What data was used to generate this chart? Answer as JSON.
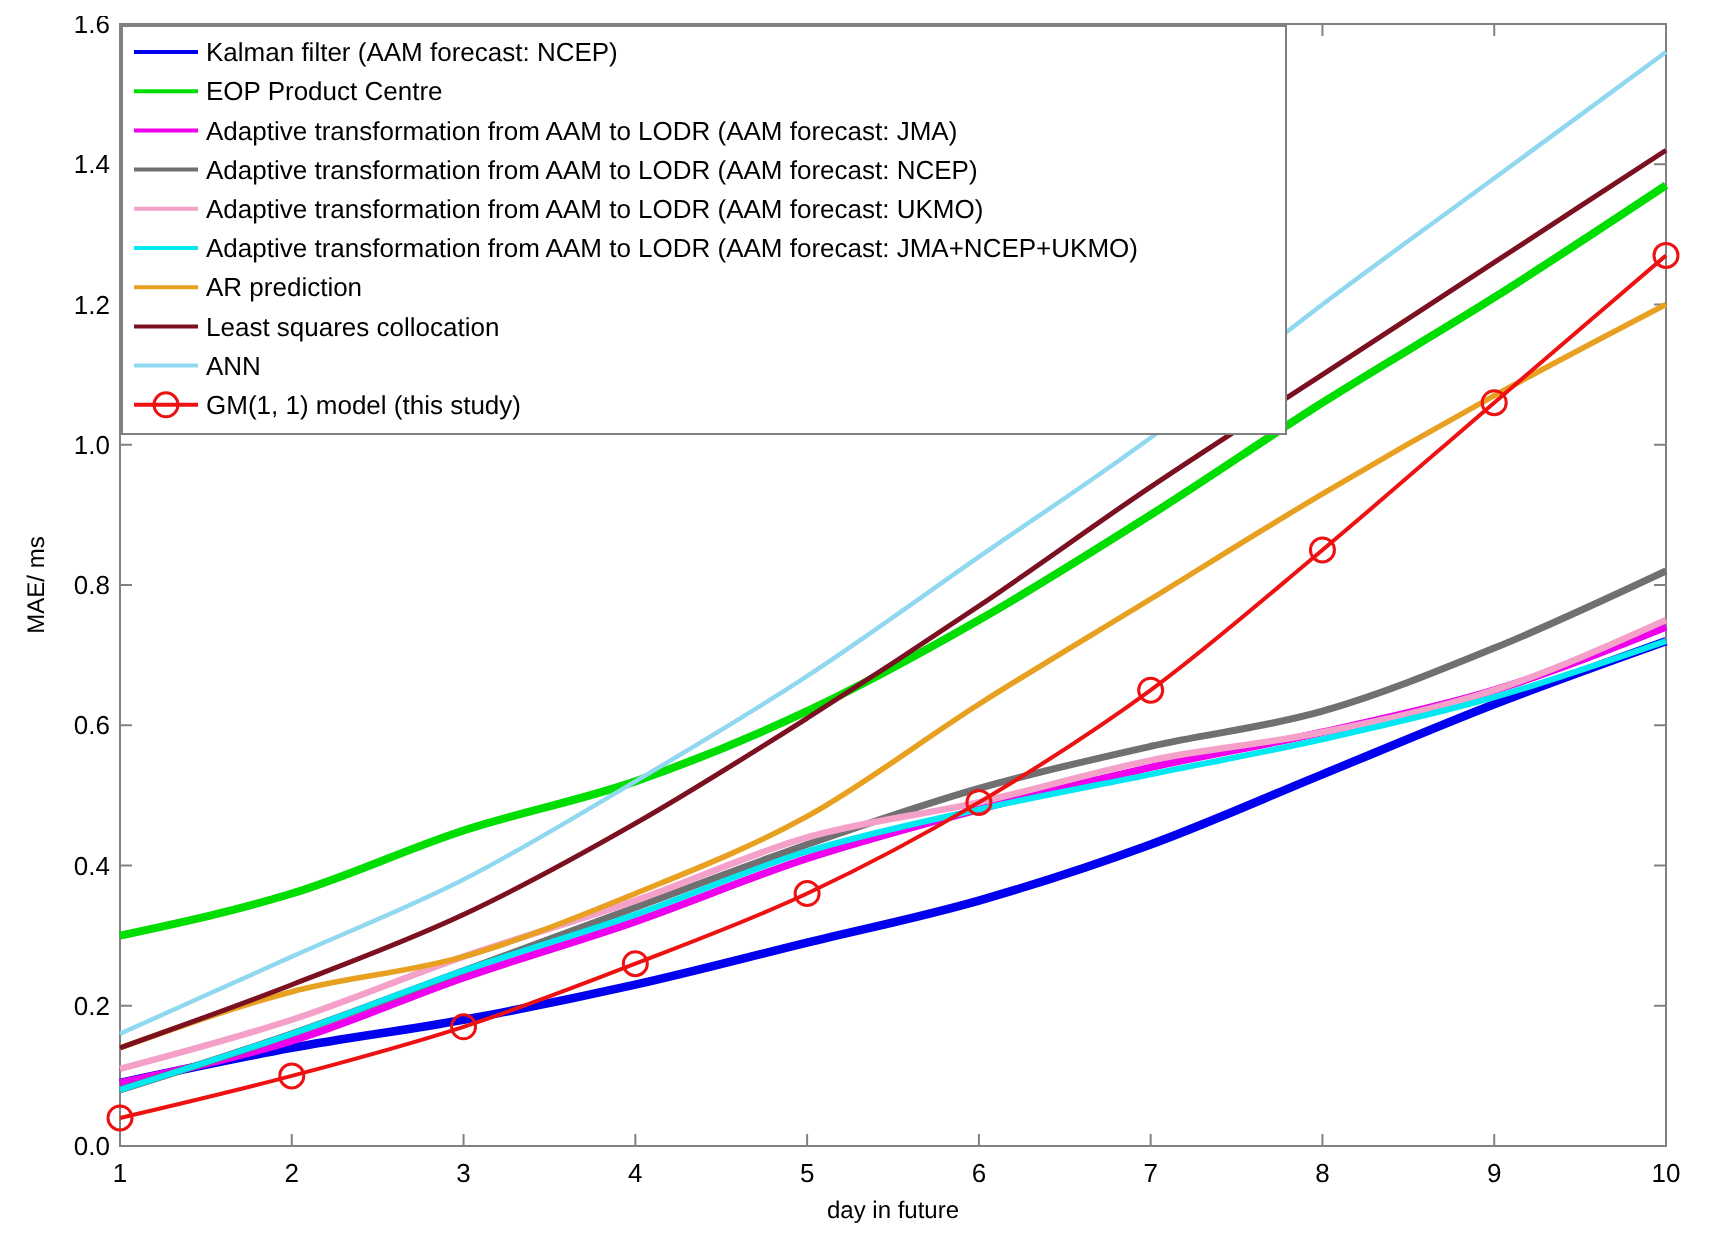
{
  "chart_data": {
    "type": "line",
    "xlabel": "day in future",
    "ylabel": "MAE/ ms",
    "x": [
      1,
      2,
      3,
      4,
      5,
      6,
      7,
      8,
      9,
      10
    ],
    "xlim": [
      1,
      10
    ],
    "xticks": [
      1,
      2,
      3,
      4,
      5,
      6,
      7,
      8,
      9,
      10
    ],
    "ylim": [
      0,
      1.6
    ],
    "yticks": [
      {
        "value": 0,
        "label": "0.0"
      },
      {
        "value": 0.2,
        "label": "0.2"
      },
      {
        "value": 0.4,
        "label": "0.4"
      },
      {
        "value": 0.6,
        "label": "0.6"
      },
      {
        "value": 0.8,
        "label": "0.8"
      },
      {
        "value": 1,
        "label": "1.0"
      },
      {
        "value": 1.2,
        "label": "1.2"
      },
      {
        "value": 1.4,
        "label": "1.4"
      },
      {
        "value": 1.6,
        "label": "1.6"
      }
    ],
    "grid": false,
    "legend": "top left",
    "series": [
      {
        "name": "Kalman filter (AAM forecast: NCEP)",
        "color": "#0000ee",
        "values": [
          0.09,
          0.14,
          0.18,
          0.23,
          0.29,
          0.35,
          0.43,
          0.53,
          0.63,
          0.72
        ]
      },
      {
        "name": "EOP Product Centre",
        "color": "#00dd00",
        "values": [
          0.3,
          0.36,
          0.45,
          0.52,
          0.62,
          0.75,
          0.9,
          1.06,
          1.21,
          1.37
        ]
      },
      {
        "name": "Adaptive transformation from AAM to LODR (AAM forecast: JMA)",
        "color": "#ee00ee",
        "values": [
          0.09,
          0.15,
          0.24,
          0.32,
          0.41,
          0.48,
          0.54,
          0.59,
          0.65,
          0.74
        ]
      },
      {
        "name": "Adaptive transformation from AAM to LODR (AAM forecast: NCEP)",
        "color": "#707070",
        "values": [
          0.08,
          0.16,
          0.25,
          0.34,
          0.43,
          0.51,
          0.57,
          0.62,
          0.71,
          0.82
        ]
      },
      {
        "name": "Adaptive transformation from AAM to LODR (AAM forecast: UKMO)",
        "color": "#f4a0c8",
        "values": [
          0.11,
          0.18,
          0.27,
          0.35,
          0.44,
          0.49,
          0.55,
          0.59,
          0.65,
          0.75
        ]
      },
      {
        "name": "Adaptive transformation from AAM to LODR (AAM forecast: JMA+NCEP+UKMO)",
        "color": "#00e8f0",
        "values": [
          0.08,
          0.16,
          0.25,
          0.33,
          0.42,
          0.48,
          0.53,
          0.58,
          0.64,
          0.72
        ]
      },
      {
        "name": "AR prediction",
        "color": "#e8a020",
        "values": [
          0.14,
          0.22,
          0.27,
          0.36,
          0.47,
          0.63,
          0.78,
          0.93,
          1.07,
          1.2
        ]
      },
      {
        "name": "Least squares collocation",
        "color": "#7a1020",
        "values": [
          0.14,
          0.23,
          0.33,
          0.46,
          0.61,
          0.77,
          0.94,
          1.1,
          1.26,
          1.42
        ]
      },
      {
        "name": "ANN",
        "color": "#90d8f0",
        "values": [
          0.16,
          0.27,
          0.38,
          0.52,
          0.67,
          0.84,
          1.01,
          1.2,
          1.38,
          1.56
        ]
      },
      {
        "name": "GM(1, 1) model (this study)",
        "color": "#ee1111",
        "marker": "circle",
        "values": [
          0.04,
          0.1,
          0.17,
          0.26,
          0.36,
          0.49,
          0.65,
          0.85,
          1.06,
          1.27
        ]
      }
    ]
  }
}
